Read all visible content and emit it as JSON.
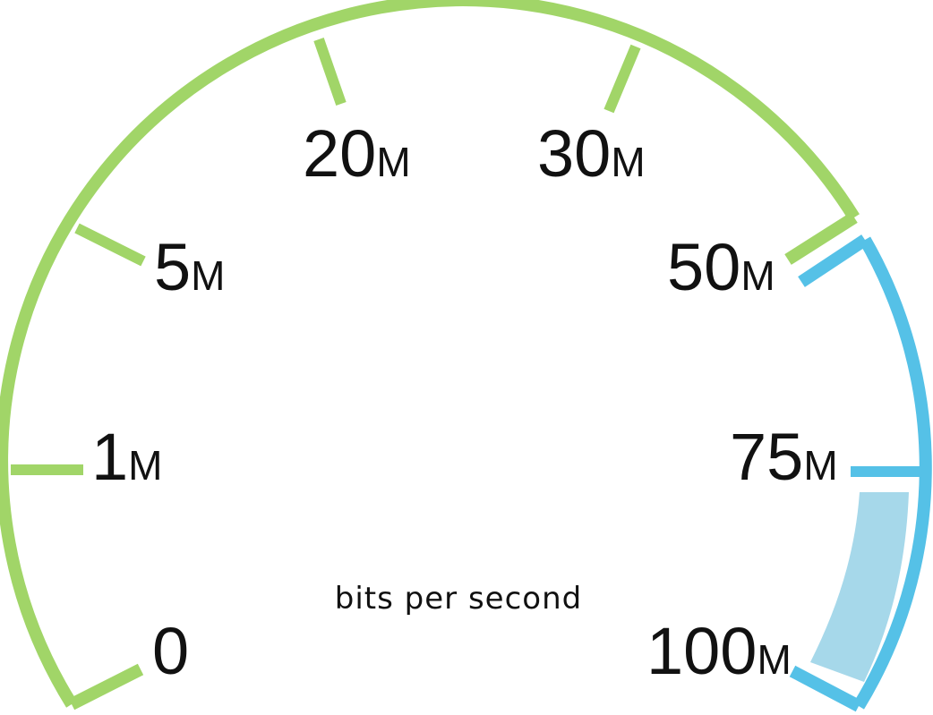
{
  "gauge": {
    "caption": "bits per second",
    "ticks": [
      {
        "value": "0",
        "unit": ""
      },
      {
        "value": "1",
        "unit": "M"
      },
      {
        "value": "5",
        "unit": "M"
      },
      {
        "value": "20",
        "unit": "M"
      },
      {
        "value": "30",
        "unit": "M"
      },
      {
        "value": "50",
        "unit": "M"
      },
      {
        "value": "75",
        "unit": "M"
      },
      {
        "value": "100",
        "unit": "M"
      }
    ],
    "colors": {
      "low_range": "#a1d568",
      "high_range": "#55c1e7",
      "reading_fill": "#a6d8ea",
      "text": "#111111"
    }
  }
}
